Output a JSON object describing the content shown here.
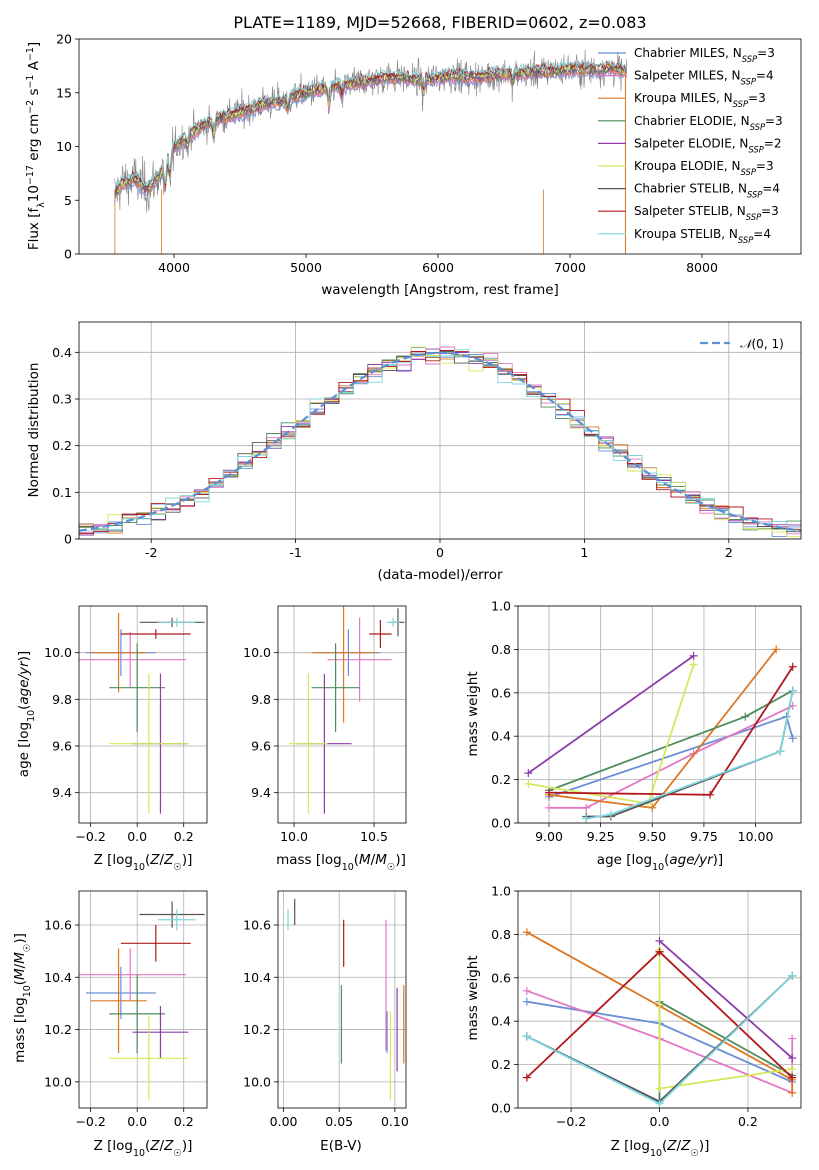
{
  "chart_data": [
    {
      "id": "spectrum",
      "type": "line",
      "title": "PLATE=1189, MJD=52668, FIBERID=0602, z=0.083",
      "xlabel": "wavelength [Angstrom, rest frame]",
      "ylabel": "Flux [f_λ 10^-17 erg cm^-2 s^-1 A^-1]",
      "xlim": [
        3280,
        8750
      ],
      "ylim": [
        0,
        20
      ],
      "xticks": [
        4000,
        5000,
        6000,
        7000,
        8000
      ],
      "yticks": [
        0,
        5,
        10,
        15,
        20
      ],
      "grid": false,
      "legend_position": "right",
      "anchors": {
        "x": [
          3550,
          3600,
          3700,
          3800,
          3900,
          4000,
          4100,
          4200,
          4300,
          4400,
          4500,
          4600,
          4700,
          4800,
          4900,
          5000,
          5100,
          5200,
          5300,
          5400,
          5500,
          5600,
          5700,
          5800,
          5900,
          6000,
          6100,
          6200,
          6300,
          6400,
          6500,
          6600,
          6700,
          6800,
          6900,
          7000,
          7100,
          7200,
          7300,
          7400
        ],
        "y": [
          5.5,
          6.5,
          7.0,
          6.0,
          7.5,
          9.8,
          11.0,
          11.8,
          12.5,
          12.8,
          13.2,
          13.6,
          14.0,
          14.2,
          14.6,
          15.0,
          15.3,
          15.6,
          15.8,
          16.0,
          16.2,
          16.4,
          16.4,
          16.3,
          16.2,
          16.4,
          16.6,
          16.5,
          16.4,
          16.6,
          16.8,
          16.7,
          16.9,
          17.0,
          17.1,
          17.2,
          17.2,
          17.1,
          17.3,
          17.0
        ]
      },
      "series": [
        {
          "name": "Chabrier MILES, N_SSP=3",
          "color": "#6a8fd6"
        },
        {
          "name": "Salpeter MILES, N_SSP=4",
          "color": "#e377c2"
        },
        {
          "name": "Kroupa MILES, N_SSP=3",
          "color": "#dd7722"
        },
        {
          "name": "Chabrier ELODIE, N_SSP=3",
          "color": "#4f8c5c"
        },
        {
          "name": "Salpeter ELODIE, N_SSP=2",
          "color": "#8e3ca8"
        },
        {
          "name": "Kroupa ELODIE, N_SSP=3",
          "color": "#d6e85a"
        },
        {
          "name": "Chabrier STELIB, N_SSP=4",
          "color": "#555555"
        },
        {
          "name": "Salpeter STELIB, N_SSP=3",
          "color": "#b2181b"
        },
        {
          "name": "Kroupa STELIB, N_SSP=4",
          "color": "#7fd6dc"
        }
      ]
    },
    {
      "id": "residuals",
      "type": "histogram",
      "xlabel": "(data-model)/error",
      "ylabel": "Normed distribution",
      "xlim": [
        -2.5,
        2.5
      ],
      "ylim": [
        0,
        0.465
      ],
      "xticks": [
        -2,
        -1,
        0,
        1,
        2
      ],
      "yticks": [
        0.0,
        0.1,
        0.2,
        0.3,
        0.4
      ],
      "grid": true,
      "bin_width": 0.1,
      "legend": "N(0,1)",
      "legend_position": "top-right",
      "reference_curve": {
        "name": "N(0,1)",
        "mean": 0,
        "sigma": 1,
        "color": "#5b8fd6"
      }
    },
    {
      "id": "age-vs-Z",
      "type": "scatter",
      "xlabel": "Z [log10(Z/Z☉)]",
      "ylabel": "age [log10(age/yr)]",
      "xlim": [
        -0.25,
        0.3
      ],
      "ylim": [
        9.27,
        10.2
      ],
      "xticks": [
        -0.2,
        0.0,
        0.2
      ],
      "yticks": [
        9.4,
        9.6,
        9.8,
        10.0
      ],
      "xticklabels": [
        "−0.2",
        "0.0",
        "0.2"
      ],
      "yticklabels": [
        "9.4",
        "9.6",
        "9.8",
        "10.0"
      ],
      "grid": true,
      "points": [
        {
          "x": -0.07,
          "y": 10.0,
          "xerr": 0.15,
          "yerr": 0.1,
          "color": "#6a8fd6"
        },
        {
          "x": -0.03,
          "y": 9.97,
          "xerr": 0.24,
          "yerr": 0.12,
          "color": "#e377c2"
        },
        {
          "x": -0.08,
          "y": 10.0,
          "xerr": 0.12,
          "yerr": 0.17,
          "color": "#dd7722"
        },
        {
          "x": 0.0,
          "y": 9.85,
          "xerr": 0.12,
          "yerr": 0.19,
          "color": "#4f8c5c"
        },
        {
          "x": 0.1,
          "y": 9.61,
          "xerr": 0.12,
          "yerr": 0.3,
          "color": "#8e3ca8"
        },
        {
          "x": 0.05,
          "y": 9.61,
          "xerr": 0.17,
          "yerr": 0.3,
          "color": "#d6e85a"
        },
        {
          "x": 0.15,
          "y": 10.13,
          "xerr": 0.14,
          "yerr": 0.02,
          "color": "#555555"
        },
        {
          "x": 0.08,
          "y": 10.08,
          "xerr": 0.15,
          "yerr": 0.02,
          "color": "#b2181b"
        },
        {
          "x": 0.17,
          "y": 10.13,
          "xerr": 0.08,
          "yerr": 0.02,
          "color": "#7fd6dc"
        }
      ]
    },
    {
      "id": "age-vs-mass",
      "type": "scatter",
      "xlabel": "mass [log10(M/M☉)]",
      "ylabel": "",
      "xlim": [
        9.9,
        10.7
      ],
      "ylim": [
        9.27,
        10.2
      ],
      "xticks": [
        10.0,
        10.5
      ],
      "yticks": [
        9.4,
        9.6,
        9.8,
        10.0
      ],
      "xticklabels": [
        "10.0",
        "10.5"
      ],
      "yticklabels": [
        "9.4",
        "9.6",
        "9.8",
        "10.0"
      ],
      "grid": true,
      "points": [
        {
          "x": 10.34,
          "y": 10.0,
          "xerr": 0.2,
          "yerr": 0.1,
          "color": "#6a8fd6"
        },
        {
          "x": 10.41,
          "y": 9.97,
          "xerr": 0.2,
          "yerr": 0.18,
          "color": "#e377c2"
        },
        {
          "x": 10.31,
          "y": 10.0,
          "xerr": 0.2,
          "yerr": 0.3,
          "color": "#dd7722"
        },
        {
          "x": 10.26,
          "y": 9.85,
          "xerr": 0.15,
          "yerr": 0.19,
          "color": "#4f8c5c"
        },
        {
          "x": 10.19,
          "y": 9.61,
          "xerr": 0.17,
          "yerr": 0.3,
          "color": "#8e3ca8"
        },
        {
          "x": 10.09,
          "y": 9.61,
          "xerr": 0.12,
          "yerr": 0.3,
          "color": "#d6e85a"
        },
        {
          "x": 10.65,
          "y": 10.13,
          "xerr": 0.04,
          "yerr": 0.06,
          "color": "#555555"
        },
        {
          "x": 10.54,
          "y": 10.08,
          "xerr": 0.07,
          "yerr": 0.06,
          "color": "#b2181b"
        },
        {
          "x": 10.62,
          "y": 10.13,
          "xerr": 0.04,
          "yerr": 0.02,
          "color": "#7fd6dc"
        }
      ]
    },
    {
      "id": "weight-vs-age",
      "type": "line",
      "xlabel": "age [log10(age/yr)]",
      "ylabel": "mass weight",
      "xlim": [
        8.85,
        10.22
      ],
      "ylim": [
        0,
        1.0
      ],
      "xticks": [
        9.0,
        9.25,
        9.5,
        9.75,
        10.0
      ],
      "yticks": [
        0.0,
        0.2,
        0.4,
        0.6,
        0.8,
        1.0
      ],
      "xticklabels": [
        "9.00",
        "9.25",
        "9.50",
        "9.75",
        "10.00"
      ],
      "yticklabels": [
        "0.0",
        "0.2",
        "0.4",
        "0.6",
        "0.8",
        "1.0"
      ],
      "grid": true,
      "series": [
        {
          "color": "#6a8fd6",
          "x": [
            9.0,
            10.15,
            10.18
          ],
          "y": [
            0.12,
            0.49,
            0.39
          ]
        },
        {
          "color": "#e377c2",
          "x": [
            9.0,
            9.18,
            9.7,
            10.18
          ],
          "y": [
            0.07,
            0.07,
            0.32,
            0.54
          ]
        },
        {
          "color": "#dd7722",
          "x": [
            9.0,
            9.5,
            10.1
          ],
          "y": [
            0.13,
            0.07,
            0.8
          ]
        },
        {
          "color": "#4f8c5c",
          "x": [
            9.0,
            9.95,
            10.18
          ],
          "y": [
            0.15,
            0.49,
            0.61
          ]
        },
        {
          "color": "#8e3ca8",
          "x": [
            8.9,
            9.7
          ],
          "y": [
            0.23,
            0.77
          ]
        },
        {
          "color": "#d6e85a",
          "x": [
            8.9,
            9.48,
            9.7
          ],
          "y": [
            0.18,
            0.09,
            0.73
          ]
        },
        {
          "color": "#555555",
          "x": [
            9.18,
            9.3,
            10.12,
            10.18
          ],
          "y": [
            0.03,
            0.03,
            0.33,
            0.61
          ]
        },
        {
          "color": "#b2181b",
          "x": [
            9.0,
            9.78,
            10.18
          ],
          "y": [
            0.14,
            0.13,
            0.72
          ]
        },
        {
          "color": "#7fd6dc",
          "x": [
            9.18,
            9.3,
            10.12,
            10.18
          ],
          "y": [
            0.02,
            0.04,
            0.33,
            0.61
          ]
        }
      ]
    },
    {
      "id": "mass-vs-Z",
      "type": "scatter",
      "xlabel": "Z [log10(Z/Z☉)]",
      "ylabel": "mass [log10(M/M☉)]",
      "xlim": [
        -0.25,
        0.3
      ],
      "ylim": [
        9.9,
        10.73
      ],
      "xticks": [
        -0.2,
        0.0,
        0.2
      ],
      "yticks": [
        10.0,
        10.2,
        10.4,
        10.6
      ],
      "xticklabels": [
        "−0.2",
        "0.0",
        "0.2"
      ],
      "yticklabels": [
        "10.0",
        "10.2",
        "10.4",
        "10.6"
      ],
      "grid": true,
      "points": [
        {
          "x": -0.07,
          "y": 10.34,
          "xerr": 0.15,
          "yerr": 0.1,
          "color": "#6a8fd6"
        },
        {
          "x": -0.03,
          "y": 10.41,
          "xerr": 0.24,
          "yerr": 0.1,
          "color": "#e377c2"
        },
        {
          "x": -0.08,
          "y": 10.31,
          "xerr": 0.12,
          "yerr": 0.2,
          "color": "#dd7722"
        },
        {
          "x": 0.0,
          "y": 10.26,
          "xerr": 0.12,
          "yerr": 0.15,
          "color": "#4f8c5c"
        },
        {
          "x": 0.1,
          "y": 10.19,
          "xerr": 0.12,
          "yerr": 0.1,
          "color": "#8e3ca8"
        },
        {
          "x": 0.05,
          "y": 10.09,
          "xerr": 0.17,
          "yerr": 0.16,
          "color": "#d6e85a"
        },
        {
          "x": 0.15,
          "y": 10.64,
          "xerr": 0.14,
          "yerr": 0.05,
          "color": "#555555"
        },
        {
          "x": 0.08,
          "y": 10.53,
          "xerr": 0.15,
          "yerr": 0.07,
          "color": "#b2181b"
        },
        {
          "x": 0.17,
          "y": 10.62,
          "xerr": 0.08,
          "yerr": 0.04,
          "color": "#7fd6dc"
        }
      ]
    },
    {
      "id": "mass-vs-EBV",
      "type": "scatter",
      "xlabel": "E(B-V)",
      "ylabel": "",
      "xlim": [
        -0.005,
        0.11
      ],
      "ylim": [
        9.9,
        10.73
      ],
      "xticks": [
        0.0,
        0.05,
        0.1
      ],
      "yticks": [
        10.0,
        10.2,
        10.4,
        10.6
      ],
      "xticklabels": [
        "0.00",
        "0.05",
        "0.10"
      ],
      "yticklabels": [
        "10.0",
        "10.2",
        "10.4",
        "10.6"
      ],
      "grid": true,
      "points": [
        {
          "x": 0.093,
          "y": 10.19,
          "xerr": 0,
          "yerr": 0.08,
          "color": "#6a8fd6"
        },
        {
          "x": 0.092,
          "y": 10.37,
          "xerr": 0,
          "yerr": 0.25,
          "color": "#e377c2"
        },
        {
          "x": 0.108,
          "y": 10.22,
          "xerr": 0,
          "yerr": 0.15,
          "color": "#dd7722"
        },
        {
          "x": 0.052,
          "y": 10.22,
          "xerr": 0,
          "yerr": 0.15,
          "color": "#4f8c5c"
        },
        {
          "x": 0.102,
          "y": 10.2,
          "xerr": 0,
          "yerr": 0.16,
          "color": "#8e3ca8"
        },
        {
          "x": 0.096,
          "y": 10.1,
          "xerr": 0,
          "yerr": 0.17,
          "color": "#d6e85a"
        },
        {
          "x": 0.01,
          "y": 10.65,
          "xerr": 0,
          "yerr": 0.05,
          "color": "#555555"
        },
        {
          "x": 0.054,
          "y": 10.53,
          "xerr": 0,
          "yerr": 0.09,
          "color": "#b2181b"
        },
        {
          "x": 0.004,
          "y": 10.62,
          "xerr": 0,
          "yerr": 0.04,
          "color": "#7fd6dc"
        }
      ]
    },
    {
      "id": "weight-vs-Z",
      "type": "line",
      "xlabel": "Z [log10(Z/Z☉)]",
      "ylabel": "mass weight",
      "xlim": [
        -0.32,
        0.32
      ],
      "ylim": [
        0,
        1.0
      ],
      "xticks": [
        -0.2,
        0.0,
        0.2
      ],
      "yticks": [
        0.0,
        0.2,
        0.4,
        0.6,
        0.8,
        1.0
      ],
      "xticklabels": [
        "−0.2",
        "0.0",
        "0.2"
      ],
      "yticklabels": [
        "0.0",
        "0.2",
        "0.4",
        "0.6",
        "0.8",
        "1.0"
      ],
      "grid": true,
      "series": [
        {
          "color": "#6a8fd6",
          "x": [
            -0.3,
            0.0,
            0.3
          ],
          "y": [
            0.49,
            0.39,
            0.12
          ]
        },
        {
          "color": "#e377c2",
          "x": [
            -0.3,
            0.0,
            0.3,
            0.3
          ],
          "y": [
            0.54,
            0.32,
            0.07,
            0.32
          ]
        },
        {
          "color": "#dd7722",
          "x": [
            -0.3,
            0.0,
            0.3,
            0.3
          ],
          "y": [
            0.81,
            0.47,
            0.13,
            0.07
          ]
        },
        {
          "color": "#4f8c5c",
          "x": [
            -0.3,
            0.0,
            0.0,
            0.3
          ],
          "y": [
            0.33,
            0.03,
            0.49,
            0.15
          ]
        },
        {
          "color": "#8e3ca8",
          "x": [
            0.0,
            0.3
          ],
          "y": [
            0.77,
            0.23
          ]
        },
        {
          "color": "#d6e85a",
          "x": [
            0.0,
            0.0,
            0.3
          ],
          "y": [
            0.73,
            0.09,
            0.18
          ]
        },
        {
          "color": "#555555",
          "x": [
            -0.3,
            0.0,
            0.3,
            0.3
          ],
          "y": [
            0.33,
            0.03,
            0.61,
            0.61
          ]
        },
        {
          "color": "#b2181b",
          "x": [
            -0.3,
            0.0,
            0.0,
            0.3
          ],
          "y": [
            0.14,
            0.72,
            0.72,
            0.14
          ]
        },
        {
          "color": "#7fd6dc",
          "x": [
            -0.3,
            0.0,
            0.3
          ],
          "y": [
            0.33,
            0.02,
            0.61
          ]
        }
      ]
    }
  ]
}
